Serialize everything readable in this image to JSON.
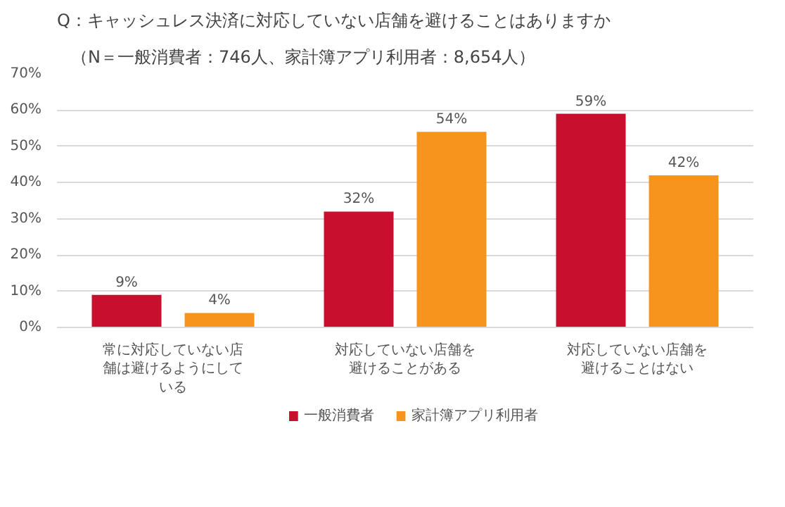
{
  "chart_data": {
    "type": "bar",
    "title": "Q：キャッシュレス決済に対応していない店舗を避けることはありますか",
    "subtitle": "（N＝一般消費者：746人、家計簿アプリ利用者：8,654人）",
    "categories": [
      "常に対応していない店舗は避けるようにしている",
      "対応していない店舗を避けることがある",
      "対応していない店舗を避けることはない"
    ],
    "series": [
      {
        "name": "一般消費者",
        "color": "#c8102e",
        "values": [
          9,
          32,
          59
        ],
        "value_labels": [
          "9%",
          "32%",
          "59%"
        ]
      },
      {
        "name": "家計簿アプリ利用者",
        "color": "#f7941d",
        "values": [
          4,
          54,
          42
        ],
        "value_labels": [
          "4%",
          "54%",
          "42%"
        ]
      }
    ],
    "ylim": [
      0,
      70
    ],
    "yticks": [
      {
        "value": 0,
        "label": "0%"
      },
      {
        "value": 10,
        "label": "10%"
      },
      {
        "value": 20,
        "label": "20%"
      },
      {
        "value": 30,
        "label": "30%"
      },
      {
        "value": 40,
        "label": "40%"
      },
      {
        "value": 50,
        "label": "50%"
      },
      {
        "value": 60,
        "label": "60%"
      },
      {
        "value": 70,
        "label": "70%"
      }
    ],
    "grid": "y",
    "legend": "bottom"
  }
}
